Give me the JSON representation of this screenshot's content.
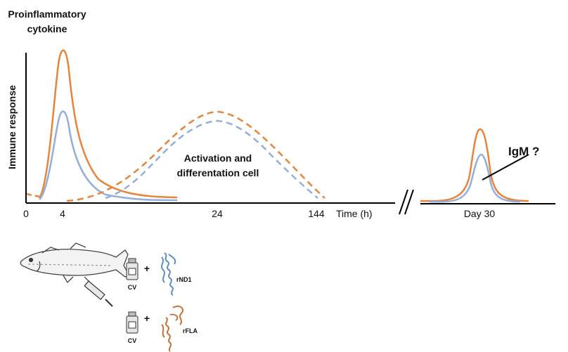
{
  "header": {
    "line1": "Proinflammatory",
    "line2": "cytokine"
  },
  "axes": {
    "ylabel": "Immune response",
    "xlabel": "Time (h)",
    "ticks": [
      "0",
      "4",
      "24",
      "144"
    ],
    "day_tick": "Day 30"
  },
  "annotations": {
    "activation_line1": "Activation and",
    "activation_line2": "differentation cell",
    "igm": "IgM ?"
  },
  "legend": {
    "vaccine_label": "CV",
    "plus_sign": "+",
    "adjuvant1": "rND1",
    "adjuvant2": "rFLA"
  },
  "colors": {
    "orange": "#E8833A",
    "blue": "#93AEDD",
    "axis": "#000000"
  },
  "icons": [
    "fish-icon",
    "syringe-icon",
    "vial-icon",
    "protein-icon"
  ]
}
